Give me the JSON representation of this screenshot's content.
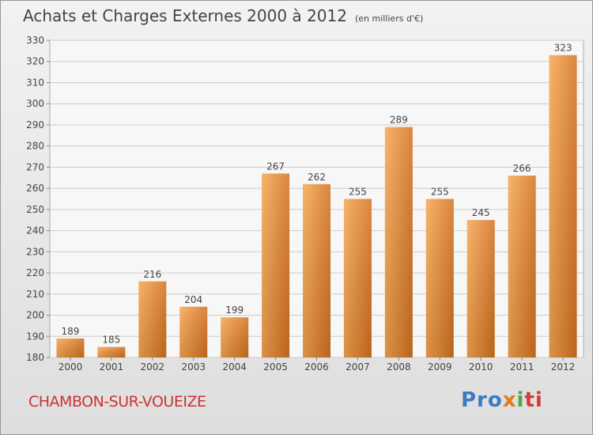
{
  "header": {
    "title": "Achats et Charges Externes 2000 à 2012",
    "subtitle": "(en milliers d'€)"
  },
  "footer": {
    "commune": "CHAMBON-SUR-VOUEIZE",
    "logo_parts": [
      "Pro",
      "x",
      "i",
      "ti"
    ]
  },
  "colors": {
    "bar_top": "#f7a651",
    "bar_bottom": "#d4711f",
    "text": "#444444",
    "grid": "#cccccc",
    "commune": "#cc3333"
  },
  "chart_data": {
    "type": "bar",
    "categories": [
      "2000",
      "2001",
      "2002",
      "2003",
      "2004",
      "2005",
      "2006",
      "2007",
      "2008",
      "2009",
      "2010",
      "2011",
      "2012"
    ],
    "values": [
      189,
      185,
      216,
      204,
      199,
      267,
      262,
      255,
      289,
      255,
      245,
      266,
      323
    ],
    "title": "Achats et Charges Externes 2000 à 2012",
    "subtitle": "(en milliers d'€)",
    "xlabel": "",
    "ylabel": "",
    "ylim": [
      180,
      330
    ],
    "yticks": [
      180,
      190,
      200,
      210,
      220,
      230,
      240,
      250,
      260,
      270,
      280,
      290,
      300,
      310,
      320,
      330
    ],
    "grid": true,
    "data_labels": true
  }
}
